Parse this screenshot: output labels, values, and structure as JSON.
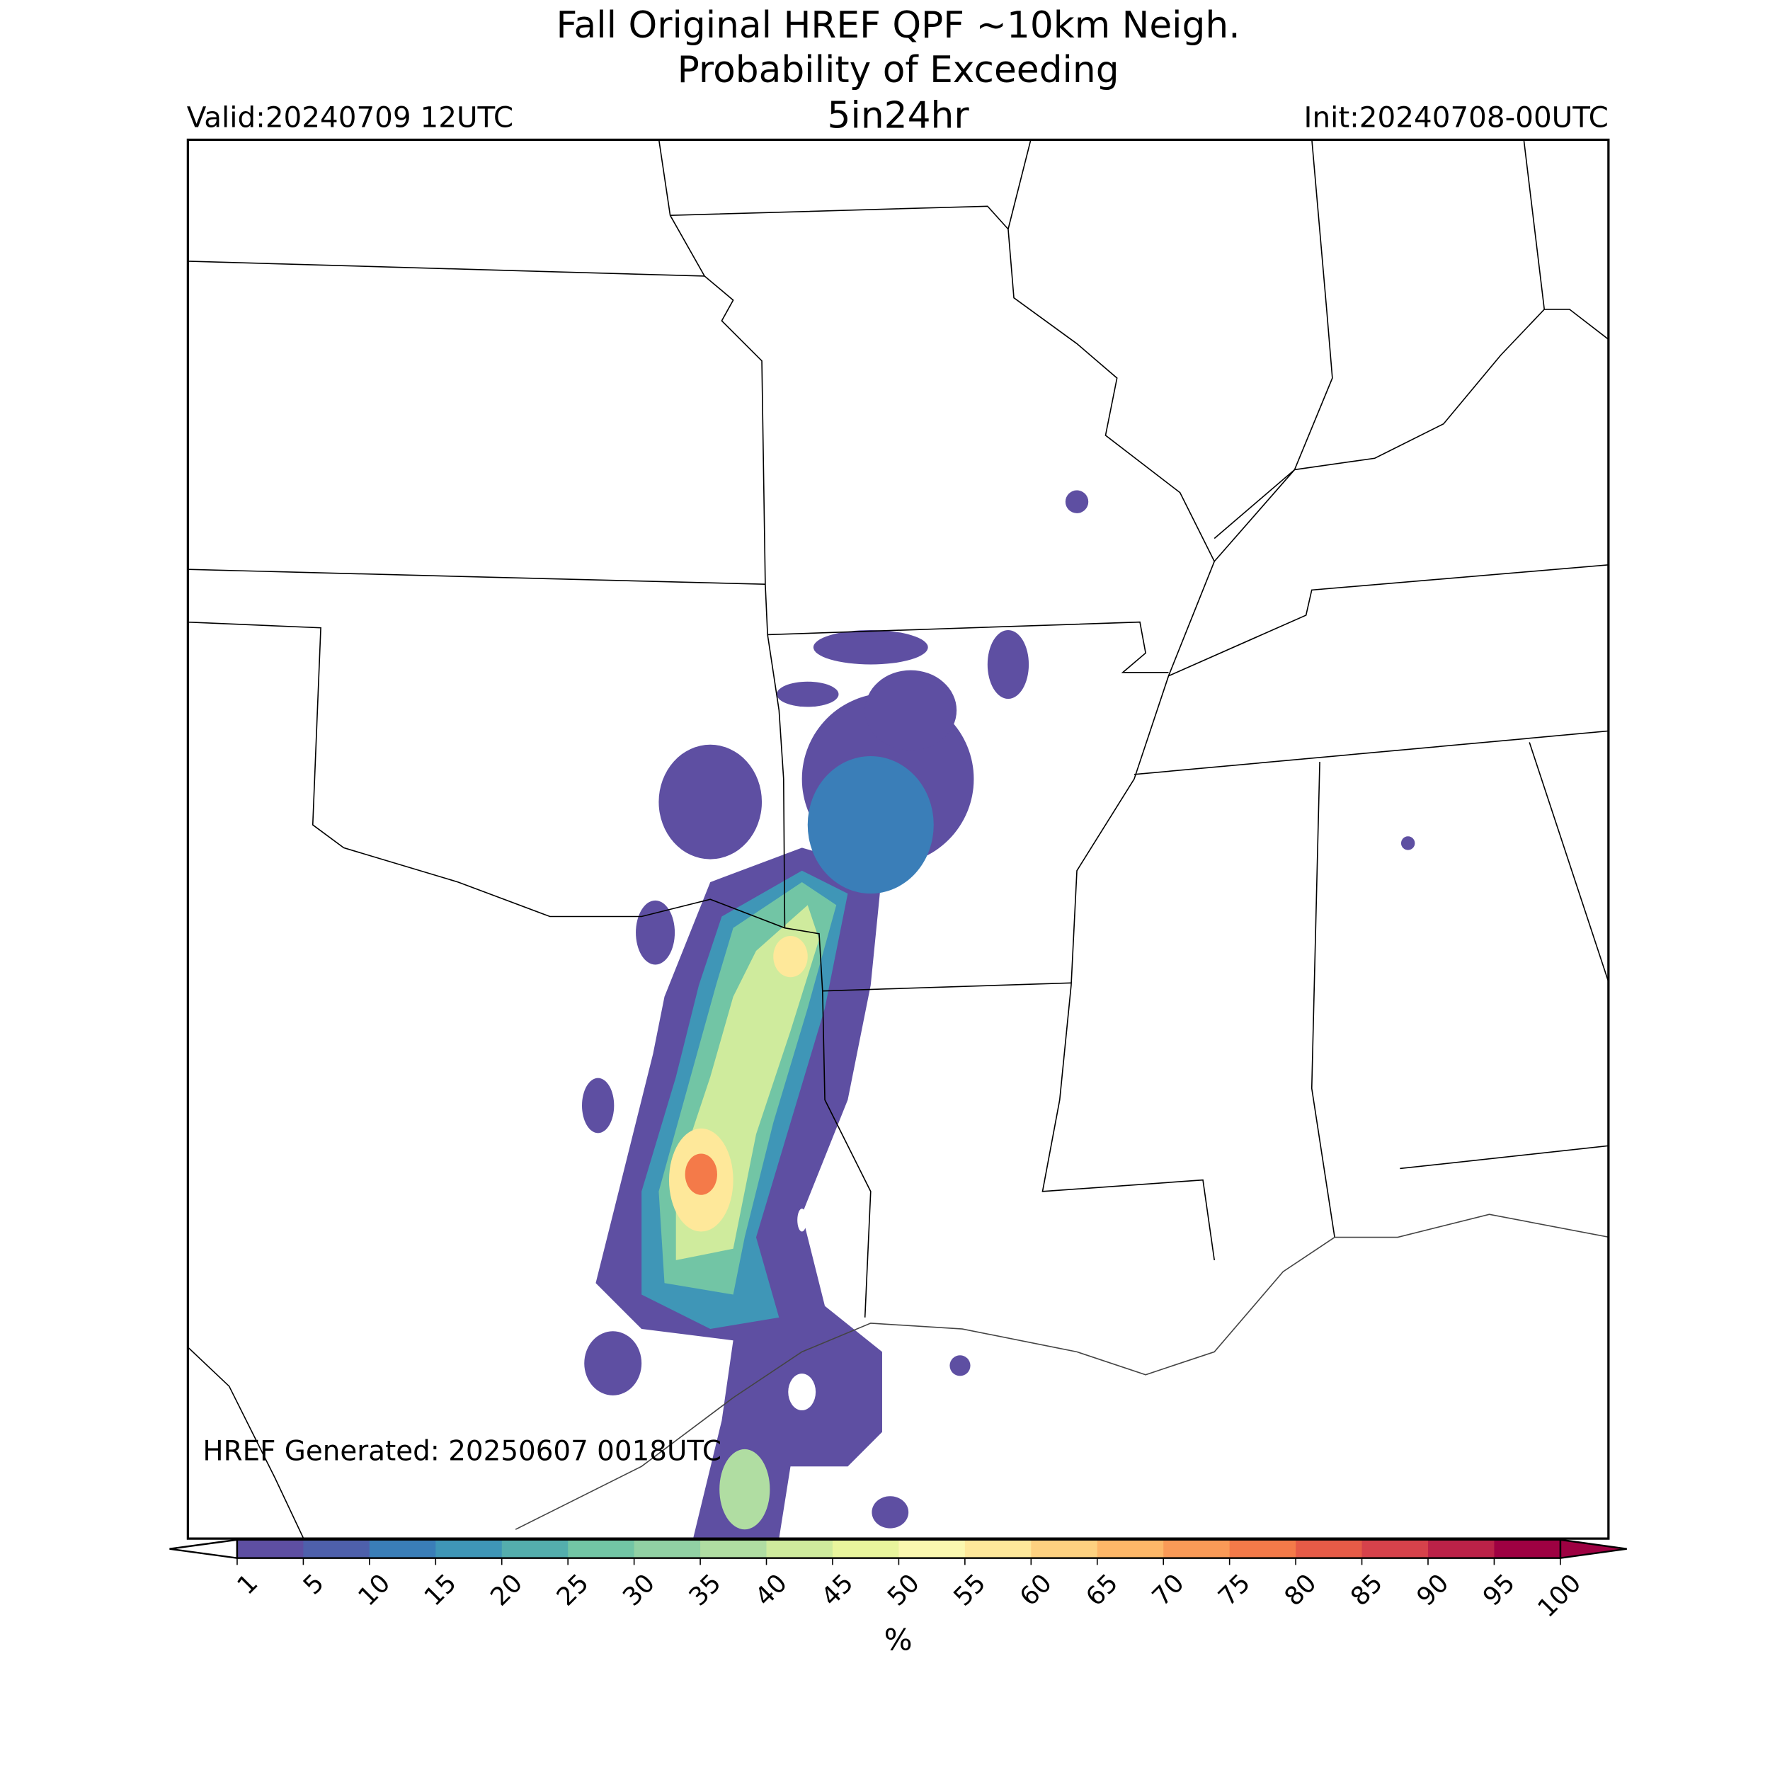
{
  "header": {
    "title_lines": [
      "Fall Original HREF QPF ~10km Neigh.",
      "Probability of Exceeding",
      "5in24hr"
    ],
    "valid": "Valid:20240709 12UTC",
    "init": "Init:20240708-00UTC"
  },
  "map": {
    "footer": "HREF Generated: 20250607 0018UTC"
  },
  "colorbar": {
    "ticks": [
      1,
      5,
      10,
      15,
      20,
      25,
      30,
      35,
      40,
      45,
      50,
      55,
      60,
      65,
      70,
      75,
      80,
      85,
      90,
      95,
      100
    ],
    "colors": [
      "#5e4fa2",
      "#4e60ab",
      "#3a7eb8",
      "#3f96b7",
      "#54aead",
      "#72c5a5",
      "#91d1a4",
      "#b0dda2",
      "#cfeb9d",
      "#e9f59d",
      "#fbf8b0",
      "#fee89a",
      "#fdd180",
      "#fdb768",
      "#fa9a57",
      "#f47a49",
      "#e65b47",
      "#d6424b",
      "#bb2248",
      "#9e0142"
    ],
    "label": "%"
  }
}
